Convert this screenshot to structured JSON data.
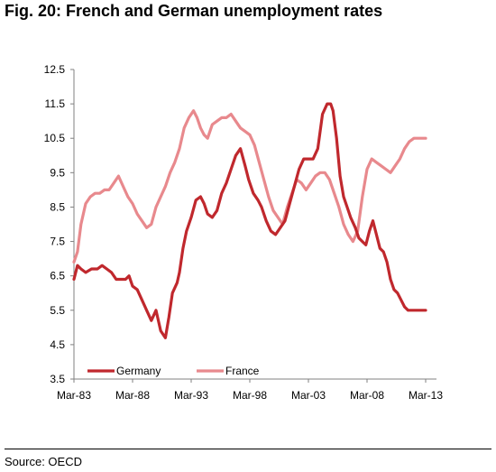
{
  "figure": {
    "title": "Fig. 20: French and German unemployment rates",
    "source": "Source: OECD"
  },
  "colors": {
    "germany": "#c0282d",
    "france": "#e8898d",
    "axis": "#808080"
  },
  "chart_data": {
    "type": "line",
    "title": "",
    "xlabel": "",
    "ylabel": "",
    "ylim": [
      3.5,
      12.5
    ],
    "y_ticks": [
      "3.5",
      "4.5",
      "5.5",
      "6.5",
      "7.5",
      "8.5",
      "9.5",
      "10.5",
      "11.5",
      "12.5"
    ],
    "x_ticks": [
      "Mar-83",
      "Mar-88",
      "Mar-93",
      "Mar-98",
      "Mar-03",
      "Mar-08",
      "Mar-13"
    ],
    "x_tick_values": [
      1983,
      1988,
      1993,
      1998,
      2003,
      2008,
      2013
    ],
    "xlim": [
      1983,
      2013
    ],
    "legend_position": "bottom-left",
    "grid": false,
    "series": [
      {
        "name": "Germany",
        "x": [
          1983.0,
          1983.3,
          1983.6,
          1984.0,
          1984.5,
          1985.0,
          1985.4,
          1985.8,
          1986.2,
          1986.6,
          1987.0,
          1987.4,
          1987.7,
          1988.0,
          1988.4,
          1988.8,
          1989.2,
          1989.6,
          1990.0,
          1990.4,
          1990.8,
          1991.1,
          1991.4,
          1991.8,
          1992.0,
          1992.3,
          1992.6,
          1993.0,
          1993.4,
          1993.8,
          1994.1,
          1994.4,
          1994.8,
          1995.2,
          1995.6,
          1996.0,
          1996.4,
          1996.8,
          1997.2,
          1997.6,
          1997.9,
          1998.3,
          1998.7,
          1999.0,
          1999.4,
          1999.8,
          2000.2,
          2000.6,
          2001.0,
          2001.4,
          2001.8,
          2002.2,
          2002.6,
          2003.0,
          2003.4,
          2003.8,
          2004.2,
          2004.6,
          2004.9,
          2005.1,
          2005.4,
          2005.7,
          2006.0,
          2006.3,
          2006.6,
          2007.0,
          2007.3,
          2007.6,
          2007.9,
          2008.2,
          2008.5,
          2008.8,
          2009.1,
          2009.4,
          2009.7,
          2010.0,
          2010.3,
          2010.6,
          2010.9,
          2011.2,
          2011.5,
          2011.8,
          2012.1,
          2012.4,
          2012.7,
          2013.0
        ],
        "values": [
          6.4,
          6.8,
          6.7,
          6.6,
          6.7,
          6.7,
          6.8,
          6.7,
          6.6,
          6.4,
          6.4,
          6.4,
          6.5,
          6.2,
          6.1,
          5.8,
          5.5,
          5.2,
          5.5,
          4.9,
          4.7,
          5.3,
          6.0,
          6.3,
          6.6,
          7.3,
          7.8,
          8.2,
          8.7,
          8.8,
          8.6,
          8.3,
          8.2,
          8.4,
          8.9,
          9.2,
          9.6,
          10.0,
          10.2,
          9.7,
          9.3,
          8.9,
          8.7,
          8.5,
          8.1,
          7.8,
          7.7,
          7.9,
          8.1,
          8.6,
          9.1,
          9.6,
          9.9,
          9.9,
          9.9,
          10.2,
          11.2,
          11.5,
          11.5,
          11.3,
          10.5,
          9.4,
          8.8,
          8.5,
          8.2,
          7.9,
          7.6,
          7.5,
          7.4,
          7.8,
          8.1,
          7.7,
          7.3,
          7.2,
          6.9,
          6.4,
          6.1,
          6.0,
          5.8,
          5.6,
          5.5,
          5.5,
          5.5,
          5.5,
          5.5,
          5.5
        ]
      },
      {
        "name": "France",
        "x": [
          1983.0,
          1983.3,
          1983.6,
          1984.0,
          1984.4,
          1984.8,
          1985.2,
          1985.6,
          1986.0,
          1986.4,
          1986.8,
          1987.2,
          1987.6,
          1988.0,
          1988.4,
          1988.8,
          1989.2,
          1989.6,
          1990.0,
          1990.4,
          1990.8,
          1991.2,
          1991.6,
          1992.0,
          1992.4,
          1992.8,
          1993.2,
          1993.5,
          1993.8,
          1994.1,
          1994.4,
          1994.8,
          1995.2,
          1995.6,
          1996.0,
          1996.4,
          1996.8,
          1997.2,
          1997.6,
          1998.0,
          1998.4,
          1998.8,
          1999.2,
          1999.6,
          2000.0,
          2000.4,
          2000.8,
          2001.2,
          2001.6,
          2002.0,
          2002.4,
          2002.8,
          2003.2,
          2003.6,
          2004.0,
          2004.4,
          2004.8,
          2005.2,
          2005.6,
          2006.0,
          2006.4,
          2006.8,
          2007.2,
          2007.6,
          2008.0,
          2008.4,
          2008.8,
          2009.2,
          2009.6,
          2010.0,
          2010.4,
          2010.8,
          2011.2,
          2011.6,
          2012.0,
          2012.4,
          2012.8,
          2013.0
        ],
        "values": [
          6.9,
          7.2,
          8.0,
          8.6,
          8.8,
          8.9,
          8.9,
          9.0,
          9.0,
          9.2,
          9.4,
          9.1,
          8.8,
          8.6,
          8.3,
          8.1,
          7.9,
          8.0,
          8.5,
          8.8,
          9.1,
          9.5,
          9.8,
          10.2,
          10.8,
          11.1,
          11.3,
          11.1,
          10.8,
          10.6,
          10.5,
          10.9,
          11.0,
          11.1,
          11.1,
          11.2,
          11.0,
          10.8,
          10.7,
          10.6,
          10.3,
          9.8,
          9.3,
          8.8,
          8.4,
          8.2,
          8.0,
          8.5,
          8.9,
          9.3,
          9.2,
          9.0,
          9.2,
          9.4,
          9.5,
          9.5,
          9.3,
          8.9,
          8.5,
          8.0,
          7.7,
          7.5,
          7.8,
          8.8,
          9.6,
          9.9,
          9.8,
          9.7,
          9.6,
          9.5,
          9.7,
          9.9,
          10.2,
          10.4,
          10.5,
          10.5,
          10.5,
          10.5
        ]
      }
    ]
  }
}
